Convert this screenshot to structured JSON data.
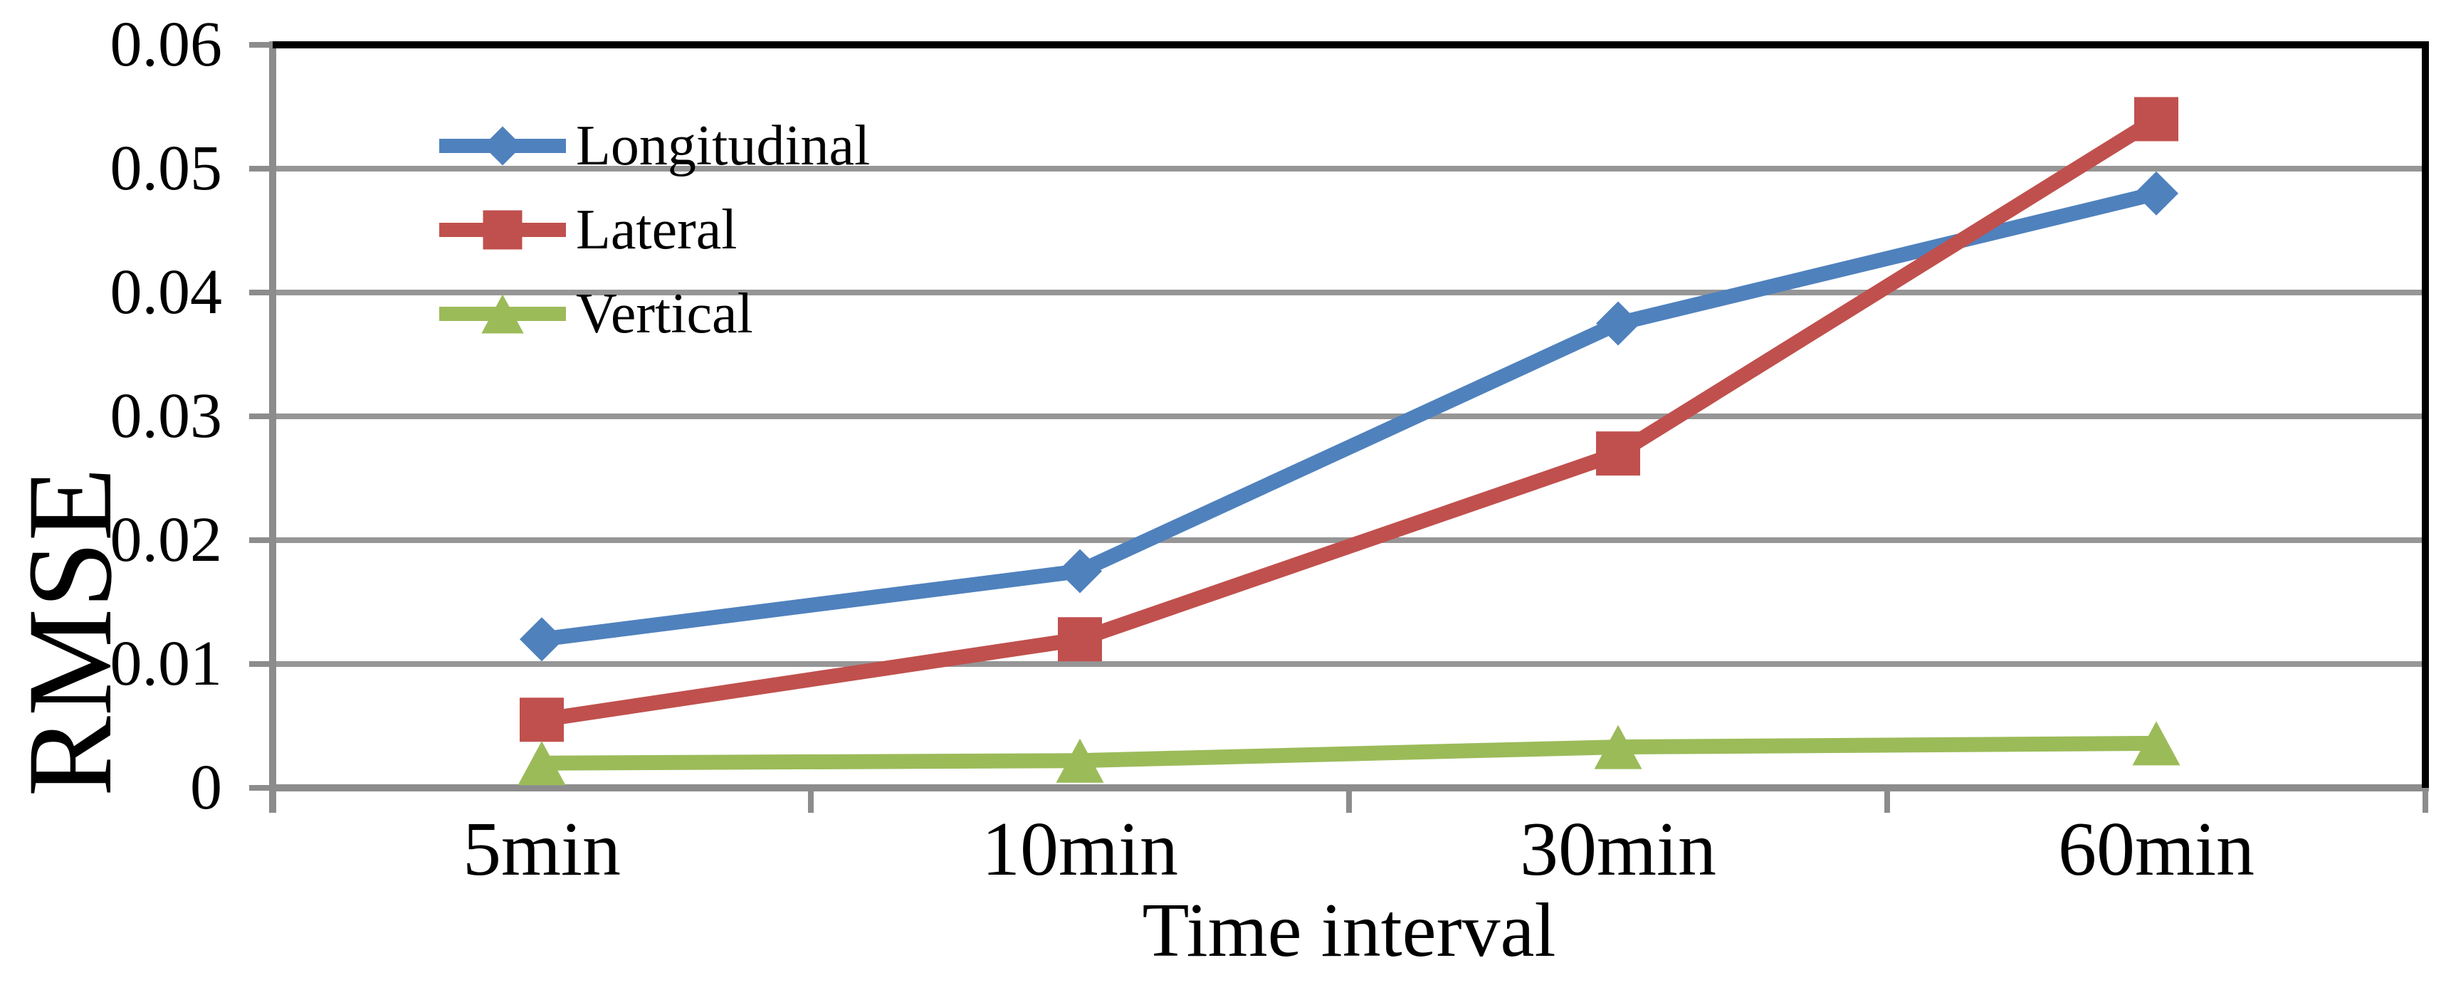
{
  "chart_data": {
    "type": "line",
    "title": "",
    "xlabel": "Time interval",
    "ylabel": "RMSE",
    "categories": [
      "5min",
      "10min",
      "30min",
      "60min"
    ],
    "y_ticks": [
      0,
      0.01,
      0.02,
      0.03,
      0.04,
      0.05,
      0.06
    ],
    "y_tick_labels": [
      "0",
      "0.01",
      "0.02",
      "0.03",
      "0.04",
      "0.05",
      "0.06"
    ],
    "ylim": [
      0,
      0.06
    ],
    "grid": "horizontal",
    "legend_position": "top-left-inside",
    "series": [
      {
        "name": "Longitudinal",
        "marker": "diamond",
        "color": "#4F81BD",
        "values": [
          0.012,
          0.0175,
          0.0375,
          0.048
        ]
      },
      {
        "name": "Lateral",
        "marker": "square",
        "color": "#C0504D",
        "values": [
          0.0055,
          0.012,
          0.027,
          0.054
        ]
      },
      {
        "name": "Vertical",
        "marker": "triangle",
        "color": "#9BBB59",
        "values": [
          0.002,
          0.0022,
          0.0033,
          0.0036
        ]
      }
    ],
    "colors": {
      "gridline": "#969696",
      "axis": "#8C8C8C",
      "frame": "#000000",
      "text": "#000000"
    }
  }
}
